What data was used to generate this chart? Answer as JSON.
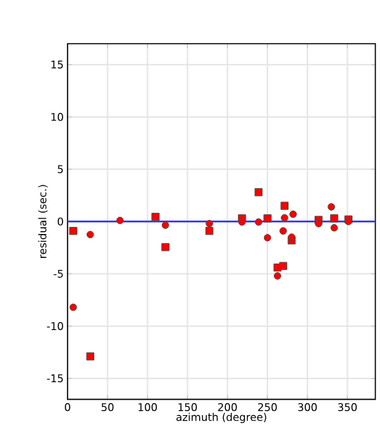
{
  "chart_data": {
    "type": "scatter",
    "xlabel": "azimuth (degree)",
    "ylabel": "residual (sec.)",
    "xlim": [
      0,
      385
    ],
    "ylim": [
      -17,
      17
    ],
    "xticks": [
      0,
      50,
      100,
      150,
      200,
      250,
      300,
      350
    ],
    "yticks": [
      -15,
      -10,
      -5,
      0,
      5,
      10,
      15
    ],
    "grid": true,
    "ref_lines": [
      {
        "axis": "y",
        "value": 0,
        "color": "#3333ee"
      }
    ],
    "series": [
      {
        "color": "#ff0000",
        "marker": "square",
        "x": [
          7.1,
          28.4,
          110,
          122.4,
          177.4,
          218.2,
          238.9,
          250.1,
          262.6,
          269.7,
          271.4,
          280.3,
          314,
          333.5,
          351.3
        ],
        "values": [
          -0.9,
          -12.9,
          0.45,
          -2.45,
          -0.9,
          0.3,
          2.8,
          0.3,
          -4.4,
          -4.25,
          1.5,
          -1.8,
          0.15,
          0.3,
          0.2
        ]
      },
      {
        "color": "#ff0000",
        "marker": "circle",
        "x": [
          7.1,
          28.4,
          65.6,
          122.4,
          177.4,
          218.2,
          238.9,
          250.1,
          262.6,
          269.7,
          271.4,
          280.3,
          282.1,
          314,
          329.9,
          333.5,
          351.3
        ],
        "values": [
          -8.2,
          -1.25,
          0.1,
          -0.35,
          -0.2,
          -0.05,
          -0.05,
          -1.55,
          -5.2,
          -0.9,
          0.35,
          -1.5,
          0.7,
          -0.2,
          1.4,
          -0.6,
          0.0
        ]
      }
    ]
  }
}
